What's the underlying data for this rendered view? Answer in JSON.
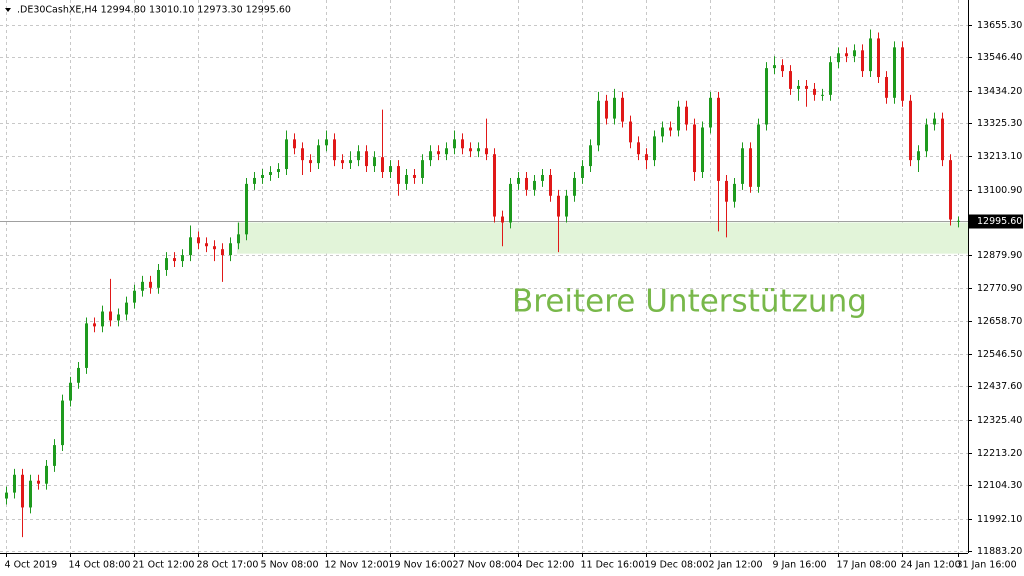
{
  "chart_data": {
    "type": "candlestick",
    "title": ".DE30CashXE,H4  12994.80 13010.10 12973.30 12995.60",
    "categories": [
      "4 Oct 2019",
      null,
      null,
      null,
      null,
      null,
      null,
      null,
      "14 Oct 08:00",
      null,
      null,
      null,
      null,
      null,
      null,
      null,
      "21 Oct 12:00",
      null,
      null,
      null,
      null,
      null,
      null,
      null,
      "28 Oct 17:00",
      null,
      null,
      null,
      null,
      null,
      null,
      null,
      "5 Nov 08:00",
      null,
      null,
      null,
      null,
      null,
      null,
      null,
      "12 Nov 12:00",
      null,
      null,
      null,
      null,
      null,
      null,
      null,
      "19 Nov 16:00",
      null,
      null,
      null,
      null,
      null,
      null,
      null,
      "27 Nov 08:00",
      null,
      null,
      null,
      null,
      null,
      null,
      null,
      "4 Dec 12:00",
      null,
      null,
      null,
      null,
      null,
      null,
      null,
      "11 Dec 16:00",
      null,
      null,
      null,
      null,
      null,
      null,
      null,
      "19 Dec 08:00",
      null,
      null,
      null,
      null,
      null,
      null,
      null,
      "2 Jan 12:00",
      null,
      null,
      null,
      null,
      null,
      null,
      null,
      "9 Jan 16:00",
      null,
      null,
      null,
      null,
      null,
      null,
      null,
      "17 Jan 08:00",
      null,
      null,
      null,
      null,
      null,
      null,
      null,
      "24 Jan 12:00",
      null,
      null,
      null,
      null,
      null,
      null,
      "31 Jan 16:00"
    ],
    "series": [
      {
        "up_color": "#1e9a1e",
        "down_color": "#e01818",
        "open": [
          12060,
          12080,
          12140,
          12030,
          12120,
          12110,
          12170,
          12240,
          12390,
          12450,
          12500,
          12650,
          12640,
          12690,
          12660,
          12680,
          12720,
          12760,
          12790,
          12770,
          12830,
          12870,
          12860,
          12880,
          12940,
          12920,
          12910,
          12900,
          12880,
          12920,
          12950,
          13120,
          13140,
          13150,
          13160,
          13170,
          13270,
          13240,
          13200,
          13190,
          13250,
          13270,
          13200,
          13190,
          13200,
          13230,
          13180,
          13210,
          13160,
          13180,
          13120,
          13150,
          13140,
          13200,
          13230,
          13220,
          13240,
          13270,
          13240,
          13230,
          13240,
          13220,
          13010,
          12990,
          13120,
          13140,
          13100,
          13130,
          13150,
          13080,
          13010,
          13080,
          13140,
          13180,
          13250,
          13400,
          13340,
          13410,
          13330,
          13260,
          13220,
          13200,
          13280,
          13310,
          13300,
          13380,
          13320,
          13160,
          13310,
          13410,
          13130,
          13060,
          13120,
          13240,
          13110,
          13320,
          13510,
          13520,
          13500,
          13440,
          13450,
          13440,
          13420,
          13420,
          13530,
          13560,
          13550,
          13570,
          13500,
          13610,
          13480,
          13410,
          13580,
          13400,
          13200,
          13230,
          13320,
          13340,
          13200,
          12994.8
        ],
        "high": [
          12100,
          12160,
          12160,
          12140,
          12140,
          12190,
          12260,
          12410,
          12470,
          12520,
          12670,
          12670,
          12710,
          12800,
          12700,
          12740,
          12780,
          12810,
          12810,
          12850,
          12890,
          12890,
          12900,
          12980,
          12960,
          12940,
          12930,
          12920,
          12940,
          12990,
          13140,
          13160,
          13170,
          13180,
          13190,
          13300,
          13290,
          13260,
          13220,
          13270,
          13300,
          13290,
          13220,
          13230,
          13250,
          13250,
          13230,
          13370,
          13200,
          13200,
          13170,
          13170,
          13220,
          13250,
          13250,
          13260,
          13300,
          13290,
          13260,
          13260,
          13340,
          13240,
          13030,
          13140,
          13160,
          13160,
          13150,
          13170,
          13170,
          13100,
          13100,
          13160,
          13200,
          13270,
          13430,
          13420,
          13440,
          13430,
          13350,
          13280,
          13240,
          13300,
          13330,
          13330,
          13400,
          13400,
          13340,
          13330,
          13430,
          13430,
          13150,
          13140,
          13260,
          13260,
          13340,
          13530,
          13550,
          13540,
          13520,
          13470,
          13470,
          13460,
          13440,
          13550,
          13580,
          13580,
          13590,
          13590,
          13640,
          13630,
          13500,
          13600,
          13600,
          13420,
          13250,
          13340,
          13360,
          13360,
          13220,
          13010.1
        ],
        "low": [
          12040,
          12060,
          11930,
          12010,
          12090,
          12090,
          12150,
          12220,
          12370,
          12430,
          12480,
          12620,
          12620,
          12640,
          12640,
          12660,
          12700,
          12740,
          12750,
          12750,
          12810,
          12840,
          12840,
          12860,
          12900,
          12890,
          12860,
          12790,
          12860,
          12900,
          12930,
          13100,
          13120,
          13130,
          13140,
          13150,
          13220,
          13150,
          13160,
          13170,
          13230,
          13180,
          13170,
          13170,
          13180,
          13160,
          13160,
          13140,
          13140,
          13080,
          13100,
          13120,
          13120,
          13180,
          13200,
          13200,
          13220,
          13220,
          13210,
          13210,
          13200,
          12990,
          12910,
          12970,
          13100,
          13080,
          13080,
          13110,
          13060,
          12890,
          12990,
          13060,
          13120,
          13160,
          13230,
          13320,
          13320,
          13310,
          13240,
          13200,
          13170,
          13180,
          13260,
          13280,
          13280,
          13300,
          13130,
          13140,
          13290,
          12960,
          12940,
          13040,
          13100,
          13090,
          13090,
          13300,
          13490,
          13480,
          13420,
          13400,
          13380,
          13400,
          13400,
          13400,
          13510,
          13530,
          13530,
          13480,
          13480,
          13460,
          13390,
          13390,
          13380,
          13180,
          13160,
          13210,
          13300,
          13180,
          12980,
          12973.3
        ],
        "close": [
          12080,
          12140,
          12030,
          12120,
          12110,
          12170,
          12240,
          12390,
          12450,
          12500,
          12650,
          12640,
          12690,
          12660,
          12680,
          12720,
          12760,
          12790,
          12770,
          12830,
          12870,
          12860,
          12880,
          12940,
          12920,
          12910,
          12900,
          12880,
          12920,
          12950,
          13120,
          13140,
          13150,
          13160,
          13170,
          13270,
          13240,
          13200,
          13190,
          13250,
          13270,
          13200,
          13190,
          13200,
          13230,
          13180,
          13210,
          13160,
          13180,
          13120,
          13150,
          13140,
          13200,
          13230,
          13220,
          13240,
          13270,
          13240,
          13230,
          13240,
          13220,
          13010,
          12990,
          13120,
          13140,
          13100,
          13130,
          13150,
          13080,
          13010,
          13080,
          13140,
          13180,
          13250,
          13400,
          13340,
          13410,
          13330,
          13260,
          13220,
          13200,
          13280,
          13310,
          13300,
          13380,
          13320,
          13160,
          13310,
          13410,
          13130,
          13060,
          13120,
          13240,
          13110,
          13320,
          13510,
          13520,
          13500,
          13440,
          13450,
          13440,
          13420,
          13420,
          13530,
          13560,
          13550,
          13570,
          13500,
          13610,
          13480,
          13410,
          13580,
          13400,
          13200,
          13230,
          13320,
          13340,
          13200,
          13000,
          12995.6
        ]
      }
    ],
    "ylim": [
      11876.5,
      13739.5
    ],
    "yticks": [
      {
        "value": 11883.2,
        "label": "11883.20"
      },
      {
        "value": 11992.1,
        "label": "11992.10"
      },
      {
        "value": 12104.3,
        "label": "12104.30"
      },
      {
        "value": 12213.2,
        "label": "12213.20"
      },
      {
        "value": 12325.4,
        "label": "12325.40"
      },
      {
        "value": 12437.6,
        "label": "12437.60"
      },
      {
        "value": 12546.5,
        "label": "12546.50"
      },
      {
        "value": 12658.7,
        "label": "12658.70"
      },
      {
        "value": 12770.9,
        "label": "12770.90"
      },
      {
        "value": 12879.9,
        "label": "12879.90"
      },
      {
        "value": 13100.9,
        "label": "13100.90"
      },
      {
        "value": 13213.1,
        "label": "13213.10"
      },
      {
        "value": 13325.3,
        "label": "13325.30"
      },
      {
        "value": 13434.2,
        "label": "13434.20"
      },
      {
        "value": 13546.4,
        "label": "13546.40"
      },
      {
        "value": 13655.3,
        "label": "13655.30"
      }
    ],
    "grid": true,
    "current_price": {
      "value": 12995.6,
      "label": "12995.60"
    },
    "zone": {
      "from": 12885,
      "to": 12990,
      "color": "#e2f4d9",
      "label": "Breitere Unterstützung",
      "label_color": "#78b84a"
    }
  }
}
